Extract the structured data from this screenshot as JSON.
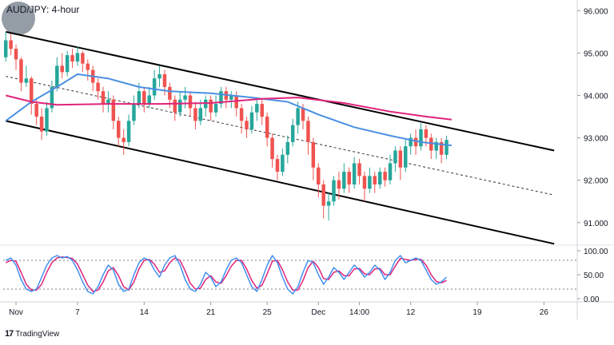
{
  "header": {
    "title": "AUD/JPY: 4-hour"
  },
  "brand": {
    "mark": "17",
    "name": "TradingView"
  },
  "colors": {
    "up": "#26a69a",
    "down": "#ef5350",
    "sma_fast": "#4a90e2",
    "sma_slow": "#e0237a",
    "stoch_k": "#3f8ff0",
    "stoch_d": "#e0237a",
    "channel": "#000000"
  },
  "chart_data": [
    {
      "type": "candlestick",
      "title": "AUD/JPY: 4-hour",
      "y_ticks": [
        "96.000",
        "95.000",
        "94.000",
        "93.000",
        "92.000",
        "91.000"
      ],
      "ylim": [
        90.6,
        96.1
      ],
      "x_ticks": [
        "Nov",
        "7",
        "14",
        "21",
        "25",
        "Dec",
        "14:00",
        "12",
        "19",
        "26"
      ],
      "x_tick_index": [
        2,
        14,
        27,
        40,
        51,
        61,
        69,
        79,
        92,
        105
      ],
      "n_slots": 112,
      "candles": [
        [
          94.9,
          95.3,
          95.5,
          94.8
        ],
        [
          95.3,
          95.1,
          95.45,
          94.95
        ],
        [
          95.1,
          94.85,
          95.2,
          94.6
        ],
        [
          94.85,
          94.3,
          94.9,
          94.1
        ],
        [
          94.3,
          94.4,
          94.7,
          94.2
        ],
        [
          94.4,
          93.8,
          94.45,
          93.55
        ],
        [
          93.8,
          93.5,
          93.9,
          93.3
        ],
        [
          93.5,
          93.15,
          93.7,
          92.95
        ],
        [
          93.15,
          93.7,
          93.85,
          93.05
        ],
        [
          93.7,
          94.2,
          94.35,
          93.6
        ],
        [
          94.2,
          94.7,
          94.9,
          94.1
        ],
        [
          94.7,
          94.55,
          95.0,
          94.4
        ],
        [
          94.55,
          94.95,
          95.05,
          94.45
        ],
        [
          94.95,
          94.8,
          95.1,
          94.65
        ],
        [
          94.8,
          95.0,
          95.15,
          94.7
        ],
        [
          95.0,
          94.75,
          95.05,
          94.55
        ],
        [
          94.75,
          94.6,
          94.85,
          94.35
        ],
        [
          94.6,
          94.3,
          94.7,
          94.1
        ],
        [
          94.3,
          94.1,
          94.4,
          93.9
        ],
        [
          94.1,
          93.8,
          94.2,
          93.6
        ],
        [
          93.8,
          93.9,
          94.1,
          93.6
        ],
        [
          93.9,
          93.4,
          94.0,
          93.2
        ],
        [
          93.4,
          93.0,
          93.5,
          92.8
        ],
        [
          93.0,
          92.9,
          93.2,
          92.6
        ],
        [
          92.9,
          93.4,
          93.55,
          92.8
        ],
        [
          93.4,
          93.8,
          94.0,
          93.3
        ],
        [
          93.8,
          94.1,
          94.3,
          93.7
        ],
        [
          94.1,
          93.8,
          94.2,
          93.6
        ],
        [
          93.8,
          94.0,
          94.2,
          93.7
        ],
        [
          94.0,
          94.4,
          94.6,
          93.9
        ],
        [
          94.4,
          94.5,
          94.7,
          94.2
        ],
        [
          94.5,
          94.2,
          94.6,
          94.0
        ],
        [
          94.2,
          93.9,
          94.3,
          93.7
        ],
        [
          93.9,
          93.6,
          94.0,
          93.4
        ],
        [
          93.6,
          93.9,
          94.1,
          93.5
        ],
        [
          93.9,
          94.0,
          94.2,
          93.7
        ],
        [
          94.0,
          93.7,
          94.1,
          93.5
        ],
        [
          93.7,
          93.4,
          93.85,
          93.2
        ],
        [
          93.4,
          93.7,
          93.9,
          93.3
        ],
        [
          93.7,
          93.9,
          94.0,
          93.5
        ],
        [
          93.9,
          93.6,
          94.0,
          93.4
        ],
        [
          93.6,
          93.8,
          94.0,
          93.5
        ],
        [
          93.8,
          94.1,
          94.2,
          93.7
        ],
        [
          94.1,
          93.9,
          94.2,
          93.7
        ],
        [
          93.9,
          94.0,
          94.1,
          93.7
        ],
        [
          94.0,
          93.7,
          94.1,
          93.5
        ],
        [
          93.7,
          93.4,
          93.8,
          93.1
        ],
        [
          93.4,
          93.2,
          93.5,
          93.0
        ],
        [
          93.2,
          93.6,
          93.75,
          93.1
        ],
        [
          93.6,
          93.8,
          93.9,
          93.4
        ],
        [
          93.8,
          93.5,
          93.9,
          93.3
        ],
        [
          93.5,
          93.0,
          93.6,
          92.8
        ],
        [
          93.0,
          92.5,
          93.1,
          92.3
        ],
        [
          92.5,
          92.2,
          92.6,
          92.0
        ],
        [
          92.2,
          92.6,
          92.75,
          92.1
        ],
        [
          92.6,
          92.9,
          93.05,
          92.4
        ],
        [
          92.9,
          93.3,
          93.45,
          92.8
        ],
        [
          93.3,
          93.7,
          93.85,
          93.1
        ],
        [
          93.7,
          93.4,
          93.8,
          93.2
        ],
        [
          93.4,
          92.9,
          93.5,
          92.6
        ],
        [
          92.9,
          92.3,
          93.0,
          92.0
        ],
        [
          92.3,
          91.9,
          92.4,
          91.6
        ],
        [
          91.9,
          91.4,
          92.0,
          91.1
        ],
        [
          91.4,
          91.5,
          91.7,
          91.05
        ],
        [
          91.5,
          92.0,
          92.1,
          91.4
        ],
        [
          92.0,
          91.8,
          92.2,
          91.55
        ],
        [
          91.8,
          92.2,
          92.4,
          91.7
        ],
        [
          92.2,
          91.9,
          92.3,
          91.7
        ],
        [
          91.9,
          92.4,
          92.55,
          91.8
        ],
        [
          92.4,
          92.1,
          92.5,
          91.9
        ],
        [
          92.1,
          91.8,
          92.2,
          91.5
        ],
        [
          91.8,
          92.1,
          92.3,
          91.7
        ],
        [
          92.1,
          91.9,
          92.2,
          91.7
        ],
        [
          91.9,
          92.2,
          92.3,
          91.8
        ],
        [
          92.2,
          92.0,
          92.3,
          91.85
        ],
        [
          92.0,
          92.4,
          92.6,
          91.9
        ],
        [
          92.4,
          92.7,
          92.8,
          92.2
        ],
        [
          92.7,
          92.3,
          92.8,
          92.0
        ],
        [
          92.3,
          92.8,
          93.0,
          92.2
        ],
        [
          92.8,
          93.0,
          93.1,
          92.6
        ],
        [
          93.0,
          92.8,
          93.2,
          92.6
        ],
        [
          92.8,
          93.2,
          93.35,
          92.7
        ],
        [
          93.2,
          93.0,
          93.3,
          92.8
        ],
        [
          93.0,
          92.7,
          93.1,
          92.5
        ],
        [
          92.7,
          92.9,
          93.0,
          92.5
        ],
        [
          92.9,
          92.6,
          93.0,
          92.4
        ],
        [
          92.6,
          92.95,
          93.05,
          92.5
        ]
      ],
      "sma_fast": [
        [
          0,
          93.4
        ],
        [
          5,
          93.85
        ],
        [
          10,
          94.2
        ],
        [
          14,
          94.5
        ],
        [
          20,
          94.4
        ],
        [
          26,
          94.2
        ],
        [
          32,
          94.1
        ],
        [
          40,
          94.05
        ],
        [
          48,
          93.95
        ],
        [
          55,
          93.85
        ],
        [
          61,
          93.55
        ],
        [
          68,
          93.25
        ],
        [
          75,
          93.05
        ],
        [
          81,
          92.9
        ],
        [
          87,
          92.82
        ]
      ],
      "sma_slow": [
        [
          0,
          94.0
        ],
        [
          5,
          93.85
        ],
        [
          10,
          93.78
        ],
        [
          20,
          93.8
        ],
        [
          30,
          93.8
        ],
        [
          40,
          93.82
        ],
        [
          50,
          93.92
        ],
        [
          57,
          93.95
        ],
        [
          66,
          93.82
        ],
        [
          75,
          93.62
        ],
        [
          82,
          93.5
        ],
        [
          87,
          93.43
        ]
      ],
      "channel_upper": [
        [
          0,
          95.5
        ],
        [
          107,
          92.7
        ]
      ],
      "channel_mid": [
        [
          0,
          94.45
        ],
        [
          107,
          91.65
        ]
      ],
      "channel_lower": [
        [
          0,
          93.4
        ],
        [
          107,
          90.5
        ]
      ],
      "stochastic": {
        "y_ticks": [
          "100.00",
          "50.00",
          "0.00"
        ],
        "ylim": [
          0,
          100
        ],
        "upper": 80,
        "lower": 20,
        "k": [
          80,
          85,
          70,
          40,
          20,
          15,
          20,
          45,
          70,
          85,
          90,
          85,
          88,
          80,
          60,
          35,
          15,
          10,
          25,
          50,
          70,
          60,
          30,
          15,
          20,
          50,
          75,
          85,
          80,
          60,
          45,
          70,
          85,
          90,
          70,
          40,
          20,
          15,
          30,
          55,
          45,
          25,
          35,
          60,
          80,
          85,
          75,
          50,
          25,
          15,
          40,
          70,
          90,
          75,
          45,
          20,
          10,
          25,
          55,
          80,
          75,
          50,
          30,
          45,
          65,
          55,
          40,
          55,
          70,
          60,
          45,
          55,
          70,
          60,
          40,
          55,
          80,
          90,
          75,
          80,
          85,
          80,
          60,
          40,
          30,
          35,
          45
        ],
        "d": [
          75,
          80,
          78,
          55,
          30,
          18,
          18,
          30,
          55,
          75,
          85,
          87,
          86,
          84,
          72,
          50,
          28,
          15,
          18,
          35,
          58,
          65,
          48,
          25,
          18,
          35,
          62,
          80,
          82,
          72,
          55,
          58,
          75,
          85,
          80,
          58,
          32,
          20,
          22,
          40,
          48,
          35,
          32,
          48,
          68,
          80,
          80,
          62,
          38,
          22,
          28,
          52,
          78,
          80,
          60,
          35,
          18,
          18,
          38,
          65,
          78,
          65,
          42,
          40,
          55,
          58,
          48,
          48,
          62,
          63,
          52,
          50,
          62,
          63,
          50,
          50,
          68,
          84,
          82,
          80,
          82,
          82,
          70,
          50,
          36,
          33,
          38
        ]
      }
    }
  ]
}
